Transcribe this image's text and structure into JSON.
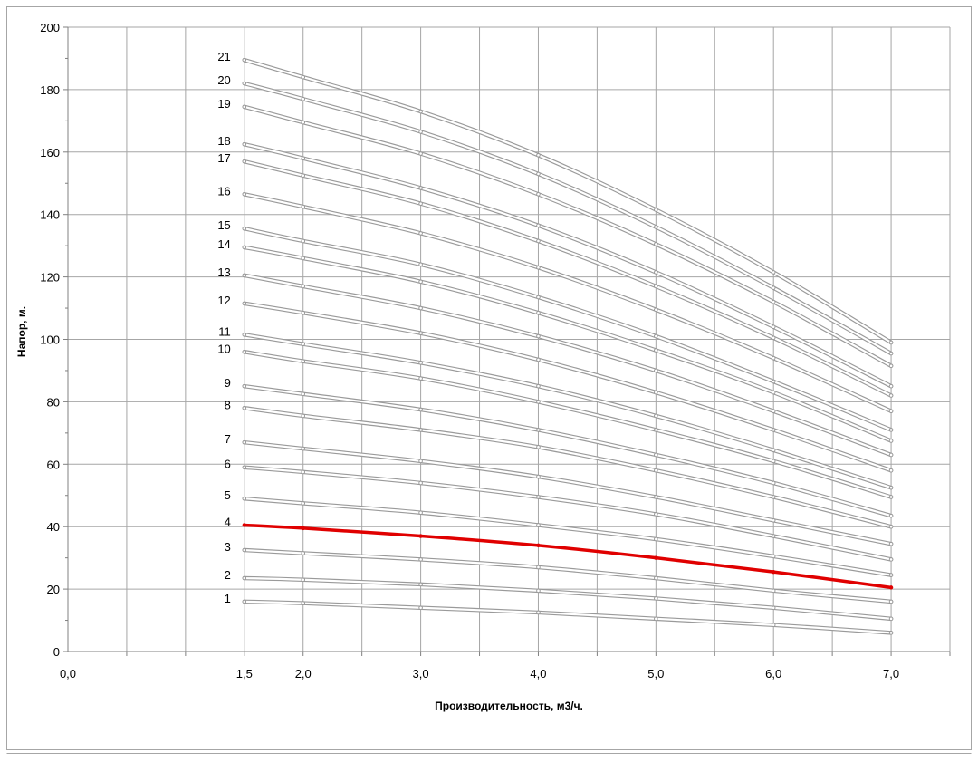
{
  "chart_data": {
    "type": "line",
    "xlabel": "Производительность, м3/ч.",
    "ylabel": "Напор, м.",
    "xlim": [
      0,
      7.5
    ],
    "ylim": [
      0,
      200
    ],
    "x_tick_values": [
      0,
      1.5,
      2,
      3,
      4,
      5,
      6,
      7
    ],
    "x_tick_labels": [
      "0,0",
      "1,5",
      "2,0",
      "3,0",
      "4,0",
      "5,0",
      "6,0",
      "7,0"
    ],
    "y_tick_values": [
      0,
      20,
      40,
      60,
      80,
      100,
      120,
      140,
      160,
      180,
      200
    ],
    "y_tick_labels": [
      "0",
      "20",
      "40",
      "60",
      "80",
      "100",
      "120",
      "140",
      "160",
      "180",
      "200"
    ],
    "grid": true,
    "highlight_color": "#e00000",
    "curve_color": "#c8c8c8",
    "highlighted_series": "4",
    "x": [
      1.5,
      2,
      3,
      4,
      5,
      6,
      7
    ],
    "series": [
      {
        "name": "1",
        "values": [
          16.0,
          15.5,
          14.0,
          12.5,
          10.5,
          8.5,
          6.0
        ]
      },
      {
        "name": "2",
        "values": [
          23.5,
          23.0,
          21.5,
          19.5,
          17.0,
          14.0,
          10.5
        ]
      },
      {
        "name": "3",
        "values": [
          32.5,
          31.5,
          29.5,
          27.0,
          23.5,
          19.5,
          16.0
        ]
      },
      {
        "name": "4",
        "values": [
          40.5,
          39.5,
          37.0,
          34.0,
          30.0,
          25.5,
          20.5
        ]
      },
      {
        "name": "5",
        "values": [
          49.0,
          47.5,
          44.5,
          40.5,
          36.0,
          30.5,
          24.5
        ]
      },
      {
        "name": "6",
        "values": [
          59.0,
          57.5,
          54.0,
          49.5,
          44.0,
          37.0,
          29.5
        ]
      },
      {
        "name": "7",
        "values": [
          67.0,
          65.0,
          61.0,
          56.0,
          49.5,
          42.0,
          34.5
        ]
      },
      {
        "name": "8",
        "values": [
          78.0,
          75.5,
          71.0,
          65.5,
          58.0,
          49.5,
          40.0
        ]
      },
      {
        "name": "9",
        "values": [
          85.0,
          82.5,
          77.5,
          71.0,
          63.0,
          54.0,
          43.5
        ]
      },
      {
        "name": "10",
        "values": [
          96.0,
          93.0,
          87.5,
          80.0,
          71.0,
          61.0,
          49.5
        ]
      },
      {
        "name": "11",
        "values": [
          101.5,
          98.5,
          92.5,
          85.0,
          75.5,
          64.5,
          52.5
        ]
      },
      {
        "name": "12",
        "values": [
          111.5,
          108.5,
          102.0,
          93.5,
          83.0,
          71.0,
          58.0
        ]
      },
      {
        "name": "13",
        "values": [
          120.5,
          117.0,
          110.0,
          101.0,
          90.0,
          77.0,
          63.0
        ]
      },
      {
        "name": "14",
        "values": [
          129.5,
          126.0,
          118.5,
          108.5,
          96.5,
          83.0,
          67.5
        ]
      },
      {
        "name": "15",
        "values": [
          135.5,
          131.5,
          124.0,
          113.5,
          101.0,
          86.5,
          71.0
        ]
      },
      {
        "name": "16",
        "values": [
          146.5,
          142.5,
          134.0,
          123.0,
          109.5,
          94.0,
          77.0
        ]
      },
      {
        "name": "17",
        "values": [
          157.0,
          152.5,
          143.5,
          131.5,
          117.0,
          100.5,
          82.0
        ]
      },
      {
        "name": "18",
        "values": [
          162.5,
          158.0,
          148.5,
          136.5,
          121.5,
          104.0,
          85.0
        ]
      },
      {
        "name": "19",
        "values": [
          174.5,
          169.5,
          159.5,
          146.5,
          130.5,
          112.0,
          91.5
        ]
      },
      {
        "name": "20",
        "values": [
          182.0,
          177.0,
          166.5,
          153.0,
          136.0,
          116.5,
          95.5
        ]
      },
      {
        "name": "21",
        "values": [
          189.5,
          184.0,
          173.0,
          159.0,
          141.5,
          121.5,
          99.0
        ]
      }
    ]
  }
}
